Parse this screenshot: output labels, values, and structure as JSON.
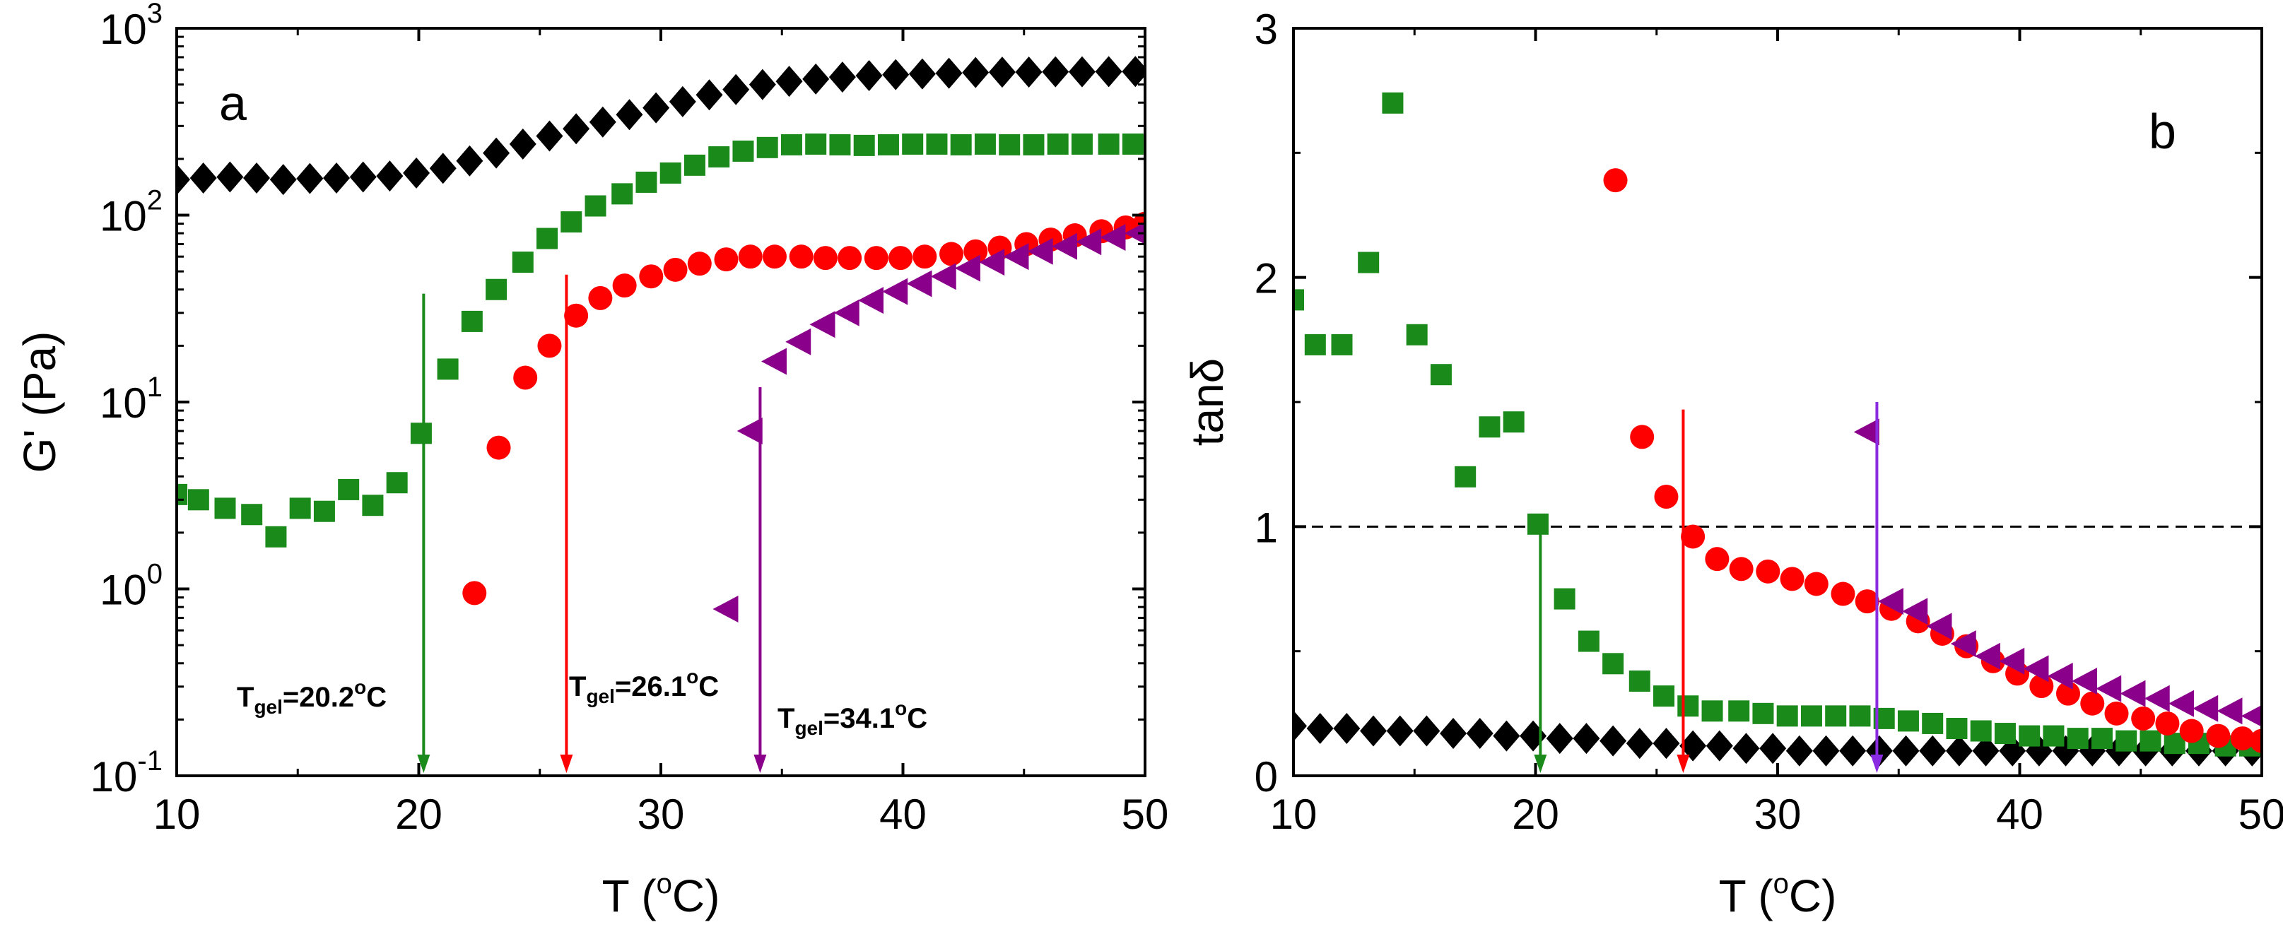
{
  "chart_data": [
    {
      "type": "scatter",
      "panel": "a",
      "xlabel": "T (",
      "xlabel_sup": "o",
      "xlabel_tail": "C)",
      "ylabel": "G' (Pa)",
      "xlim": [
        10,
        50
      ],
      "ylim": [
        0.1,
        1000
      ],
      "yscale": "log",
      "xticks": [
        10,
        20,
        30,
        40,
        50
      ],
      "xtick_labels": [
        "10",
        "20",
        "30",
        "40",
        "50"
      ],
      "yticks": [
        0.1,
        1,
        10,
        100,
        1000
      ],
      "ytick_bases": [
        "10",
        "10",
        "10",
        "10",
        "10"
      ],
      "ytick_exps": [
        "-1",
        "0",
        "1",
        "2",
        "3"
      ],
      "series": [
        {
          "name": "black-diamonds",
          "marker": "diamond",
          "color": "#000000",
          "x": [
            10.0,
            11.1,
            12.2,
            13.3,
            14.4,
            15.5,
            16.6,
            17.7,
            18.8,
            19.9,
            21.0,
            22.1,
            23.2,
            24.3,
            25.4,
            26.5,
            27.6,
            28.7,
            29.8,
            30.9,
            32.0,
            33.1,
            34.2,
            35.3,
            36.4,
            37.5,
            38.6,
            39.7,
            40.8,
            41.9,
            43.0,
            44.1,
            45.2,
            46.3,
            47.4,
            48.5,
            49.6
          ],
          "y": [
            155,
            158,
            160,
            158,
            155,
            157,
            158,
            160,
            162,
            168,
            178,
            195,
            215,
            240,
            265,
            290,
            315,
            345,
            375,
            405,
            440,
            470,
            500,
            520,
            535,
            548,
            558,
            565,
            570,
            575,
            580,
            582,
            583,
            585,
            585,
            586,
            587
          ]
        },
        {
          "name": "green-squares",
          "marker": "square",
          "color": "#1a8a1a",
          "x": [
            10.0,
            10.9,
            12.0,
            13.1,
            14.1,
            15.1,
            16.1,
            17.1,
            18.1,
            19.1,
            20.1,
            21.2,
            22.2,
            23.2,
            24.3,
            25.3,
            26.3,
            27.3,
            28.4,
            29.4,
            30.4,
            31.4,
            32.4,
            33.4,
            34.4,
            35.4,
            36.4,
            37.4,
            38.4,
            39.4,
            40.4,
            41.4,
            42.4,
            43.4,
            44.4,
            45.4,
            46.4,
            47.4,
            48.5,
            49.5
          ],
          "y": [
            3.2,
            3.0,
            2.7,
            2.5,
            1.9,
            2.7,
            2.6,
            3.4,
            2.8,
            3.7,
            6.8,
            15,
            27,
            40,
            56,
            75,
            92,
            112,
            130,
            150,
            168,
            185,
            205,
            220,
            230,
            238,
            240,
            238,
            236,
            238,
            240,
            240,
            238,
            240,
            238,
            238,
            240,
            240,
            240,
            240
          ]
        },
        {
          "name": "red-circles",
          "marker": "circle",
          "color": "#ff0000",
          "x": [
            22.3,
            23.3,
            24.4,
            25.4,
            26.5,
            27.5,
            28.5,
            29.6,
            30.6,
            31.6,
            32.7,
            33.7,
            34.7,
            35.8,
            36.8,
            37.8,
            38.9,
            39.9,
            40.9,
            42.0,
            43.0,
            44.0,
            45.1,
            46.1,
            47.1,
            48.2,
            49.2,
            50.0
          ],
          "y": [
            0.95,
            5.7,
            13.5,
            20,
            29,
            36,
            42,
            47,
            51,
            55,
            58,
            60,
            60,
            60,
            59,
            59,
            59,
            59,
            60,
            62,
            64,
            67,
            70,
            74,
            78,
            82,
            86,
            90
          ]
        },
        {
          "name": "purple-triangles",
          "marker": "triangle-left",
          "color": "#8b008b",
          "x": [
            32.7,
            33.7,
            34.7,
            35.7,
            36.7,
            37.7,
            38.7,
            39.7,
            40.7,
            41.7,
            42.7,
            43.7,
            44.7,
            45.7,
            46.7,
            47.7,
            48.7,
            49.7
          ],
          "y": [
            0.78,
            7.0,
            16.5,
            21,
            26,
            30,
            35,
            39,
            43,
            47,
            52,
            56,
            60,
            64,
            68,
            72,
            76,
            80
          ]
        }
      ],
      "annotations": [
        {
          "main": "T",
          "sub": "gel",
          "value": "=20.2",
          "deg": "o",
          "unit": "C",
          "color": "#1a8a1a",
          "x": 20.2,
          "arrow_from": 38
        },
        {
          "main": "T",
          "sub": "gel",
          "value": "=26.1",
          "deg": "o",
          "unit": "C",
          "color": "#ff0000",
          "x": 26.1,
          "arrow_from": 48
        },
        {
          "main": "T",
          "sub": "gel",
          "value": "=34.1",
          "deg": "o",
          "unit": "C",
          "color": "#8b008b",
          "x": 34.1,
          "arrow_from": 12
        }
      ]
    },
    {
      "type": "scatter",
      "panel": "b",
      "xlabel": "T (",
      "xlabel_sup": "o",
      "xlabel_tail": "C)",
      "ylabel": "tanδ",
      "xlim": [
        10,
        50
      ],
      "ylim": [
        0,
        3
      ],
      "yscale": "linear",
      "xticks": [
        10,
        20,
        30,
        40,
        50
      ],
      "xtick_labels": [
        "10",
        "20",
        "30",
        "40",
        "50"
      ],
      "yticks": [
        0,
        1,
        2,
        3
      ],
      "ytick_labels": [
        "0",
        "1",
        "2",
        "3"
      ],
      "reference_line": {
        "y": 1,
        "style": "dashed"
      },
      "series": [
        {
          "name": "black-diamonds",
          "marker": "diamond",
          "color": "#000000",
          "x": [
            10.0,
            11.1,
            12.2,
            13.3,
            14.4,
            15.5,
            16.6,
            17.7,
            18.8,
            19.9,
            21.0,
            22.1,
            23.2,
            24.3,
            25.4,
            26.5,
            27.6,
            28.7,
            29.8,
            30.9,
            32.0,
            33.1,
            34.2,
            35.3,
            36.4,
            37.5,
            38.6,
            39.7,
            40.8,
            41.9,
            43.0,
            44.1,
            45.2,
            46.3,
            47.4,
            48.5,
            49.6
          ],
          "y": [
            0.2,
            0.19,
            0.19,
            0.18,
            0.18,
            0.18,
            0.17,
            0.17,
            0.16,
            0.16,
            0.15,
            0.15,
            0.14,
            0.13,
            0.13,
            0.12,
            0.12,
            0.11,
            0.11,
            0.1,
            0.1,
            0.1,
            0.1,
            0.1,
            0.1,
            0.1,
            0.1,
            0.1,
            0.1,
            0.1,
            0.1,
            0.1,
            0.1,
            0.1,
            0.1,
            0.1,
            0.1
          ]
        },
        {
          "name": "green-squares",
          "marker": "square",
          "color": "#1a8a1a",
          "x": [
            10.0,
            10.9,
            12.0,
            13.1,
            14.1,
            15.1,
            16.1,
            17.1,
            18.1,
            19.1,
            20.1,
            21.2,
            22.2,
            23.2,
            24.3,
            25.3,
            26.3,
            27.3,
            28.4,
            29.4,
            30.4,
            31.4,
            32.4,
            33.4,
            34.4,
            35.4,
            36.4,
            37.4,
            38.4,
            39.4,
            40.4,
            41.4,
            42.4,
            43.4,
            44.4,
            45.4,
            46.4,
            47.4,
            48.5,
            49.5
          ],
          "y": [
            1.91,
            1.73,
            1.73,
            2.06,
            2.7,
            1.77,
            1.61,
            1.2,
            1.4,
            1.42,
            1.01,
            0.71,
            0.54,
            0.45,
            0.38,
            0.32,
            0.28,
            0.26,
            0.26,
            0.25,
            0.24,
            0.24,
            0.24,
            0.24,
            0.23,
            0.22,
            0.21,
            0.19,
            0.18,
            0.17,
            0.16,
            0.16,
            0.15,
            0.15,
            0.14,
            0.14,
            0.13,
            0.13,
            0.12,
            0.12
          ]
        },
        {
          "name": "red-circles",
          "marker": "circle",
          "color": "#ff0000",
          "x": [
            23.3,
            24.4,
            25.4,
            26.5,
            27.5,
            28.5,
            29.6,
            30.6,
            31.6,
            32.7,
            33.7,
            34.7,
            35.8,
            36.8,
            37.8,
            38.9,
            39.9,
            40.9,
            42.0,
            43.0,
            44.0,
            45.1,
            46.1,
            47.1,
            48.2,
            49.2,
            50.0
          ],
          "y": [
            2.39,
            1.36,
            1.12,
            0.96,
            0.87,
            0.83,
            0.82,
            0.79,
            0.77,
            0.73,
            0.7,
            0.67,
            0.62,
            0.57,
            0.52,
            0.46,
            0.41,
            0.36,
            0.33,
            0.29,
            0.25,
            0.23,
            0.21,
            0.18,
            0.16,
            0.15,
            0.14
          ]
        },
        {
          "name": "purple-triangles",
          "marker": "triangle-left",
          "color": "#8b008b",
          "x": [
            33.7,
            34.7,
            35.7,
            36.7,
            37.7,
            38.7,
            39.7,
            40.7,
            41.7,
            42.7,
            43.7,
            44.7,
            45.7,
            46.7,
            47.7,
            48.7,
            49.7
          ],
          "y": [
            1.38,
            0.7,
            0.66,
            0.6,
            0.53,
            0.48,
            0.46,
            0.43,
            0.4,
            0.38,
            0.35,
            0.33,
            0.31,
            0.29,
            0.27,
            0.26,
            0.24
          ]
        }
      ],
      "arrows": [
        {
          "x": 20.2,
          "from": 1.0,
          "color": "#1a8a1a"
        },
        {
          "x": 26.1,
          "from": 1.47,
          "color": "#ff0000"
        },
        {
          "x": 34.1,
          "from": 1.5,
          "color": "#8a2be2"
        }
      ]
    }
  ]
}
